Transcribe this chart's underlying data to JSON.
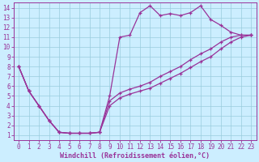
{
  "xlabel": "Windchill (Refroidissement éolien,°C)",
  "xlim": [
    -0.5,
    23.5
  ],
  "ylim": [
    0.5,
    14.5
  ],
  "xticks": [
    0,
    1,
    2,
    3,
    4,
    5,
    6,
    7,
    8,
    9,
    10,
    11,
    12,
    13,
    14,
    15,
    16,
    17,
    18,
    19,
    20,
    21,
    22,
    23
  ],
  "yticks": [
    1,
    2,
    3,
    4,
    5,
    6,
    7,
    8,
    9,
    10,
    11,
    12,
    13,
    14
  ],
  "background_color": "#cceeff",
  "line_color": "#993399",
  "grid_color": "#99ccdd",
  "curve1_x": [
    0,
    1,
    2,
    3,
    4,
    5,
    6,
    7,
    8,
    9,
    10,
    11,
    12,
    13,
    14,
    15,
    16,
    17,
    18,
    19,
    20,
    21,
    22,
    23
  ],
  "curve1_y": [
    8.0,
    5.5,
    4.0,
    2.5,
    1.3,
    1.2,
    1.2,
    1.2,
    1.3,
    5.0,
    11.0,
    11.2,
    13.5,
    14.2,
    13.2,
    13.4,
    13.2,
    13.5,
    14.2,
    12.8,
    12.2,
    11.5,
    11.2,
    11.2
  ],
  "curve2_x": [
    0,
    1,
    2,
    3,
    4,
    5,
    6,
    7,
    8,
    9,
    10,
    11,
    12,
    13,
    14,
    15,
    16,
    17,
    18,
    19,
    20,
    21,
    22,
    23
  ],
  "curve2_y": [
    8.0,
    5.5,
    4.0,
    2.5,
    1.3,
    1.2,
    1.2,
    1.2,
    1.3,
    4.5,
    5.3,
    5.7,
    6.0,
    6.4,
    7.0,
    7.5,
    8.0,
    8.7,
    9.3,
    9.8,
    10.5,
    11.0,
    11.2,
    11.2
  ],
  "curve3_x": [
    0,
    1,
    2,
    3,
    4,
    5,
    6,
    7,
    8,
    9,
    10,
    11,
    12,
    13,
    14,
    15,
    16,
    17,
    18,
    19,
    20,
    21,
    22,
    23
  ],
  "curve3_y": [
    8.0,
    5.5,
    4.0,
    2.5,
    1.3,
    1.2,
    1.2,
    1.2,
    1.3,
    4.0,
    4.8,
    5.2,
    5.5,
    5.8,
    6.3,
    6.8,
    7.3,
    7.9,
    8.5,
    9.0,
    9.8,
    10.5,
    11.0,
    11.2
  ],
  "figsize": [
    3.2,
    2.0
  ],
  "dpi": 100,
  "font_family": "monospace",
  "tick_fontsize": 5.5,
  "xlabel_fontsize": 6.0
}
